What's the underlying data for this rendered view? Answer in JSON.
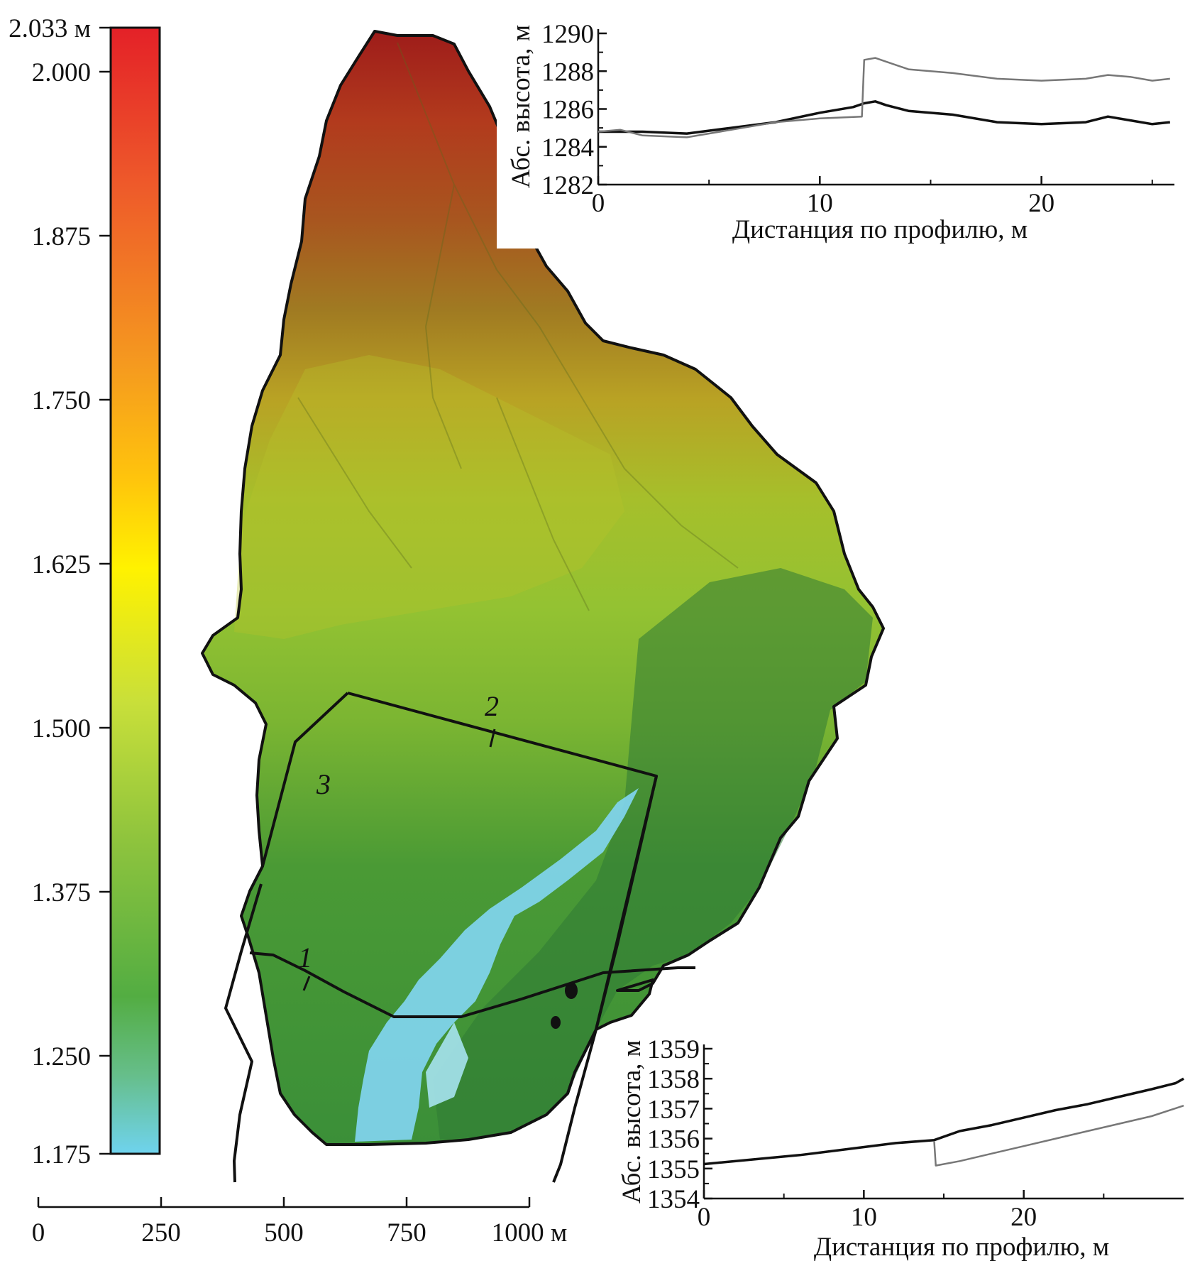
{
  "colorbar": {
    "top_label": "2.033 м",
    "labels": [
      "2.000",
      "1.875",
      "1.750",
      "1.625",
      "1.500",
      "1.375",
      "1.250",
      "1.175"
    ],
    "colors": [
      "#e82a2a",
      "#ef6a2a",
      "#f7b21c",
      "#fff200",
      "#bfdc3a",
      "#74b83c",
      "#4dab3f",
      "#6cd3e6"
    ]
  },
  "scale_bar": {
    "labels": [
      "0",
      "250",
      "500",
      "750",
      "1000 м"
    ]
  },
  "map": {
    "profile_labels": [
      "1",
      "2",
      "3"
    ],
    "colors": {
      "outline": "#111111",
      "high": "#b8231f",
      "mid": "#a8cf2a",
      "low": "#3f9a3a",
      "water": "#7fd3ea"
    }
  },
  "chart_data": [
    {
      "type": "line",
      "xlabel": "Дистанция по профилю, м",
      "ylabel": "Абс. высота, м",
      "xlim": [
        0,
        26
      ],
      "ylim": [
        1282,
        1290
      ],
      "xticks": [
        "0",
        "10",
        "20"
      ],
      "yticks": [
        "1282",
        "1284",
        "1286",
        "1288",
        "1290"
      ],
      "series": [
        {
          "color": "#111111",
          "x": [
            0,
            2,
            4,
            6,
            8,
            10,
            11.5,
            12,
            12.5,
            13,
            14,
            16,
            18,
            20,
            22,
            23,
            24,
            25,
            25.8
          ],
          "y": [
            1284.8,
            1284.8,
            1284.7,
            1285.0,
            1285.3,
            1285.8,
            1286.1,
            1286.3,
            1286.4,
            1286.2,
            1285.9,
            1285.7,
            1285.3,
            1285.2,
            1285.3,
            1285.6,
            1285.4,
            1285.2,
            1285.3
          ]
        },
        {
          "color": "#777777",
          "x": [
            0,
            1,
            2,
            4,
            6,
            8,
            10,
            11.9,
            12.0,
            12.5,
            13,
            14,
            16,
            18,
            20,
            22,
            23,
            24,
            25,
            25.8
          ],
          "y": [
            1284.8,
            1284.9,
            1284.6,
            1284.5,
            1284.9,
            1285.3,
            1285.5,
            1285.6,
            1288.6,
            1288.7,
            1288.5,
            1288.1,
            1287.9,
            1287.6,
            1287.5,
            1287.6,
            1287.8,
            1287.7,
            1287.5,
            1287.6
          ]
        }
      ]
    },
    {
      "type": "line",
      "xlabel": "Дистанция по профилю, м",
      "ylabel": "Абс. высота, м",
      "xlim": [
        0,
        30
      ],
      "ylim": [
        1354,
        1359
      ],
      "xticks": [
        "0",
        "10",
        "20"
      ],
      "yticks": [
        "1354",
        "1355",
        "1356",
        "1357",
        "1358",
        "1359"
      ],
      "series": [
        {
          "color": "#111111",
          "x": [
            0,
            3,
            6,
            9,
            12,
            14.4,
            16,
            18,
            20,
            22,
            24,
            26,
            28,
            29.5,
            30
          ],
          "y": [
            1355.15,
            1355.3,
            1355.45,
            1355.65,
            1355.85,
            1355.95,
            1356.25,
            1356.45,
            1356.7,
            1356.95,
            1357.15,
            1357.4,
            1357.65,
            1357.85,
            1358.0
          ]
        },
        {
          "color": "#777777",
          "x": [
            14.4,
            14.5,
            16,
            18,
            20,
            22,
            24,
            26,
            28,
            30
          ],
          "y": [
            1355.9,
            1355.1,
            1355.25,
            1355.5,
            1355.75,
            1356.0,
            1356.25,
            1356.5,
            1356.75,
            1357.1
          ]
        }
      ]
    }
  ]
}
